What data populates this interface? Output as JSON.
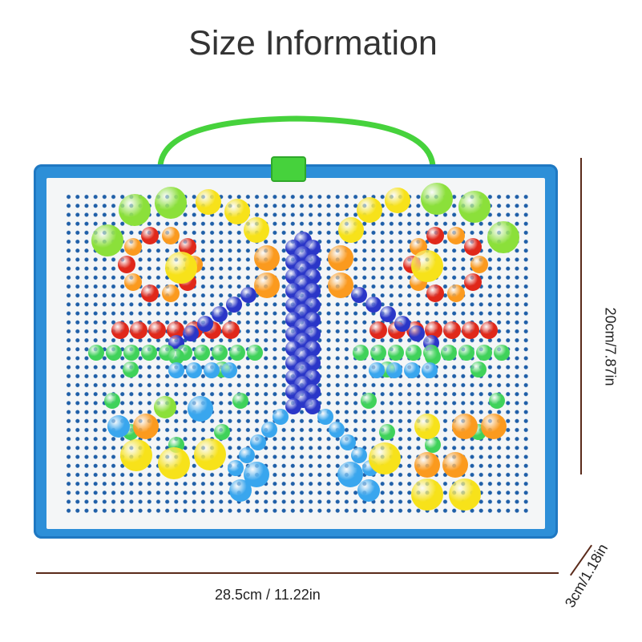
{
  "title": "Size Information",
  "dimensions": {
    "width": "28.5cm / 11.22in",
    "height": "20cm/7.87in",
    "depth": "3cm/1.18in"
  },
  "colors": {
    "board_frame": "#2d8fd8",
    "handle": "#46d23c",
    "dimension_line": "#5a2a1a"
  }
}
